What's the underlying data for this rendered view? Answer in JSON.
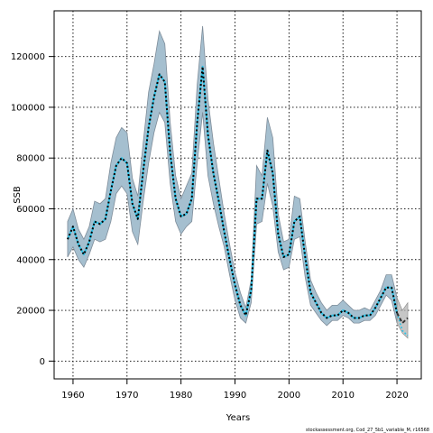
{
  "chart_data": {
    "type": "line",
    "title": "",
    "xlabel": "Years",
    "ylabel": "SSB",
    "xlim": [
      1956.5,
      2024.5
    ],
    "ylim": [
      -7000,
      138000
    ],
    "x_ticks": [
      1960,
      1970,
      1980,
      1990,
      2000,
      2010,
      2020
    ],
    "y_ticks": [
      0,
      20000,
      40000,
      60000,
      80000,
      100000,
      120000
    ],
    "grid": true,
    "band_color": "#a5bfcf",
    "band_edge_color": "#7f8d9a",
    "line_color": "#000000",
    "forecast_line_color": "#2ec2e6",
    "forecast_band_color": "#b3b3b3",
    "series": [
      {
        "x": [
          1959,
          1960,
          1961,
          1962,
          1963,
          1964,
          1965,
          1966,
          1967,
          1968,
          1969,
          1970,
          1971,
          1972,
          1973,
          1974,
          1975,
          1976,
          1977,
          1978,
          1979,
          1980,
          1981,
          1982,
          1983,
          1984,
          1985,
          1986,
          1987,
          1988,
          1989,
          1990,
          1991,
          1992,
          1993,
          1994,
          1995,
          1996,
          1997,
          1998,
          1999,
          2000,
          2001,
          2002,
          2003,
          2004,
          2005,
          2006,
          2007,
          2008,
          2009,
          2010,
          2011,
          2012,
          2013,
          2014,
          2015,
          2016,
          2017,
          2018,
          2019,
          2020
        ],
        "values": [
          48000,
          53000,
          46000,
          42000,
          47000,
          55000,
          54000,
          56000,
          67000,
          77000,
          80000,
          78000,
          62000,
          56000,
          75000,
          92000,
          104000,
          113000,
          110000,
          82000,
          64000,
          57000,
          58000,
          64000,
          94000,
          116000,
          89000,
          74000,
          63000,
          51000,
          40000,
          30000,
          22000,
          18000,
          28000,
          64000,
          64000,
          83000,
          74000,
          50000,
          41000,
          42000,
          55000,
          57000,
          41000,
          27000,
          23000,
          19000,
          17000,
          18000,
          18000,
          20000,
          19000,
          17000,
          17000,
          18000,
          18000,
          21000,
          25000,
          29000,
          29000,
          19000
        ],
        "lower": [
          41000,
          45000,
          40000,
          37000,
          42000,
          48000,
          47000,
          48000,
          55000,
          66000,
          69000,
          66000,
          51000,
          46000,
          63000,
          78000,
          90000,
          98000,
          94000,
          70000,
          55000,
          50000,
          53000,
          55000,
          78000,
          98000,
          73000,
          62000,
          53000,
          45000,
          34000,
          24000,
          17000,
          15000,
          23000,
          54000,
          55000,
          70000,
          61000,
          43000,
          36000,
          37000,
          48000,
          49000,
          33000,
          22000,
          19000,
          16000,
          14000,
          16000,
          16000,
          18000,
          17000,
          15000,
          15000,
          16000,
          16000,
          18000,
          22000,
          26000,
          24000,
          15000
        ],
        "upper": [
          55000,
          60000,
          52000,
          48000,
          53000,
          63000,
          62000,
          64000,
          78000,
          88000,
          92000,
          90000,
          72000,
          65000,
          86000,
          106000,
          117000,
          130000,
          125000,
          94000,
          73000,
          64000,
          69000,
          74000,
          109000,
          132000,
          103000,
          86000,
          72000,
          58000,
          46000,
          35000,
          27000,
          21000,
          32000,
          77000,
          73000,
          96000,
          88000,
          58000,
          47000,
          48000,
          65000,
          64000,
          47000,
          32000,
          27000,
          23000,
          20000,
          22000,
          22000,
          24000,
          22000,
          20000,
          20000,
          21000,
          20000,
          24000,
          28000,
          34000,
          34000,
          25000
        ]
      },
      {
        "x": [
          2020,
          2021,
          2022
        ],
        "values": [
          19000,
          15000,
          17000
        ],
        "lower": [
          15000,
          11000,
          9000
        ],
        "upper": [
          25000,
          20000,
          23000
        ]
      },
      {
        "x": [
          2020,
          2021,
          2022
        ],
        "values": [
          19000,
          12000,
          10000
        ]
      }
    ]
  },
  "footer": "stockassessment.org, Cod_27_5b1_variable_M, r16568"
}
